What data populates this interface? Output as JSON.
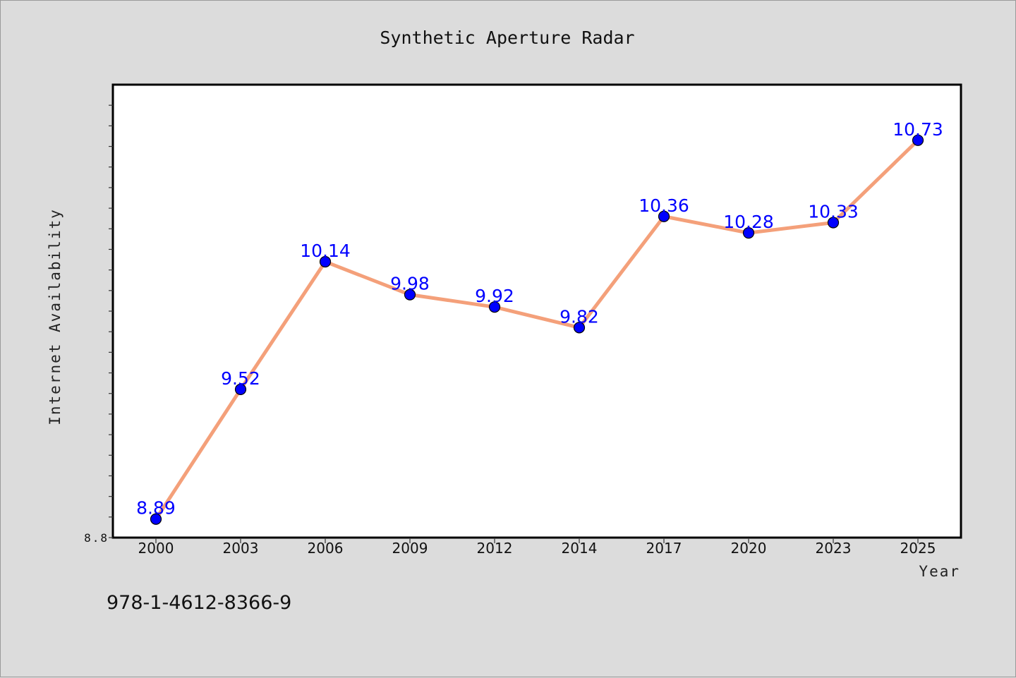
{
  "chart_data": {
    "type": "line",
    "title": "Synthetic Aperture Radar",
    "xlabel": "Year",
    "ylabel": "Internet Availability",
    "categories": [
      "2000",
      "2003",
      "2006",
      "2009",
      "2012",
      "2014",
      "2017",
      "2020",
      "2023",
      "2025"
    ],
    "series": [
      {
        "values": [
          8.89,
          9.52,
          10.14,
          9.98,
          9.92,
          9.82,
          10.36,
          10.28,
          10.33,
          10.73
        ],
        "line_color": "#f4a07a",
        "marker_color": "#0000ff"
      }
    ],
    "data_labels": [
      "8.89",
      "9.52",
      "10.14",
      "9.98",
      "9.92",
      "9.82",
      "10.36",
      "10.28",
      "10.33",
      "10.73"
    ],
    "y_tick_labels": [
      "8.8"
    ],
    "ylim": [
      8.8,
      11.0
    ],
    "grid": false,
    "legend": "none",
    "background_color": "#dcdcdc",
    "plot_background": "#ffffff"
  },
  "footer_text": "978-1-4612-8366-9"
}
